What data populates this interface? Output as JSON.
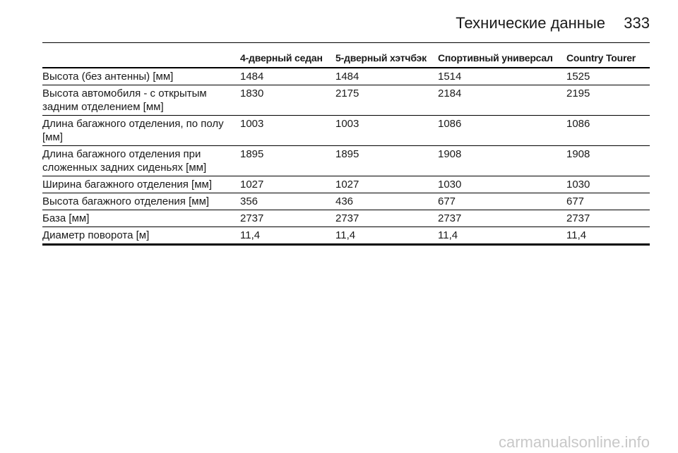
{
  "header": {
    "title": "Технические данные",
    "page_number": "333"
  },
  "table": {
    "columns": [
      "4-дверный седан",
      "5-дверный хэтчбэк",
      "Спортивный универсал",
      "Country Tourer"
    ],
    "rows": [
      [
        "Высота (без антенны) [мм]",
        "1484",
        "1484",
        "1514",
        "1525"
      ],
      [
        "Высота автомобиля - с открытым задним отделением [мм]",
        "1830",
        "2175",
        "2184",
        "2195"
      ],
      [
        "Длина багажного отделения, по полу [мм]",
        "1003",
        "1003",
        "1086",
        "1086"
      ],
      [
        "Длина багажного отделения при сложенных задних сиденьях [мм]",
        "1895",
        "1895",
        "1908",
        "1908"
      ],
      [
        "Ширина багажного отделения [мм]",
        "1027",
        "1027",
        "1030",
        "1030"
      ],
      [
        "Высота багажного отделения [мм]",
        "356",
        "436",
        "677",
        "677"
      ],
      [
        "База [мм]",
        "2737",
        "2737",
        "2737",
        "2737"
      ],
      [
        "Диаметр поворота [м]",
        "11,4",
        "11,4",
        "11,4",
        "11,4"
      ]
    ]
  },
  "watermark": "carmanualsonline.info"
}
